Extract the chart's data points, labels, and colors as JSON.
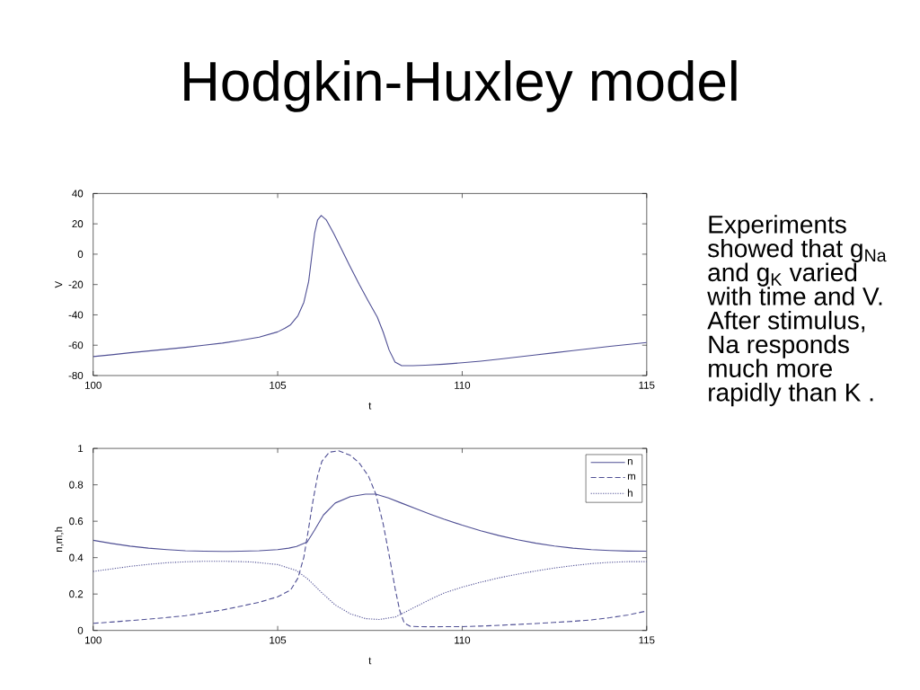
{
  "chart_data": [
    {
      "type": "line",
      "title": "Hodgkin-Huxley model",
      "xlabel": "t",
      "ylabel": "V",
      "color": "#4f4f94",
      "line_style": "solid",
      "xlim": [
        100,
        115
      ],
      "ylim": [
        -80,
        40
      ],
      "xticks": [
        100,
        105,
        110,
        115
      ],
      "yticks": [
        -80,
        -60,
        -40,
        -20,
        0,
        20,
        40
      ],
      "x": [
        100,
        100.5,
        101,
        101.5,
        102,
        102.5,
        103,
        103.5,
        104,
        104.5,
        105,
        105.2,
        105.35,
        105.55,
        105.71,
        105.84,
        105.92,
        106,
        106.08,
        106.18,
        106.32,
        106.52,
        106.72,
        106.96,
        107.21,
        107.45,
        107.7,
        107.86,
        108.02,
        108.18,
        108.35,
        108.67,
        109,
        109.5,
        110,
        110.5,
        111,
        111.5,
        112,
        112.5,
        113,
        113.5,
        114,
        114.5,
        115
      ],
      "values": [
        -67.5,
        -66.3,
        -65,
        -63.8,
        -62.6,
        -61.4,
        -60,
        -58.6,
        -56.8,
        -54.7,
        -51.2,
        -48.8,
        -46.5,
        -40.5,
        -31.7,
        -17.9,
        -2.1,
        13.6,
        22.5,
        25.5,
        22.5,
        13.6,
        3.8,
        -8,
        -19.9,
        -30.7,
        -41.5,
        -51.4,
        -63.2,
        -71.1,
        -73.4,
        -73.5,
        -73.2,
        -72.5,
        -71.6,
        -70.5,
        -69.2,
        -67.8,
        -66.4,
        -65,
        -63.6,
        -62.2,
        -60.8,
        -59.5,
        -58.2
      ]
    },
    {
      "type": "line",
      "xlabel": "t",
      "ylabel": "n,m,h",
      "xlim": [
        100,
        115
      ],
      "ylim": [
        0,
        1
      ],
      "xticks": [
        100,
        105,
        110,
        115
      ],
      "yticks": [
        0,
        0.2,
        0.4,
        0.6,
        0.8,
        1
      ],
      "legend": "top right",
      "series": [
        {
          "name": "n",
          "color": "#4f4f94",
          "line_style": "solid",
          "x": [
            100,
            100.5,
            101,
            101.5,
            102,
            102.5,
            103,
            103.5,
            104,
            104.5,
            105,
            105.3,
            105.51,
            105.8,
            106,
            106.24,
            106.56,
            106.97,
            107.38,
            107.66,
            108,
            108.35,
            108.75,
            109.16,
            109.5,
            110,
            110.5,
            111,
            111.5,
            112,
            112.5,
            113,
            113.5,
            114,
            114.5,
            115
          ],
          "values": [
            0.495,
            0.478,
            0.463,
            0.452,
            0.444,
            0.438,
            0.435,
            0.434,
            0.435,
            0.438,
            0.444,
            0.452,
            0.461,
            0.486,
            0.551,
            0.634,
            0.7,
            0.735,
            0.749,
            0.749,
            0.728,
            0.7,
            0.668,
            0.637,
            0.612,
            0.578,
            0.548,
            0.521,
            0.498,
            0.479,
            0.464,
            0.452,
            0.444,
            0.439,
            0.436,
            0.435
          ]
        },
        {
          "name": "m",
          "color": "#4f4f94",
          "line_style": "dashed",
          "x": [
            100,
            100.5,
            101,
            101.5,
            102,
            102.5,
            103,
            103.5,
            104,
            104.5,
            105,
            105.35,
            105.55,
            105.71,
            105.83,
            105.96,
            106.08,
            106.2,
            106.4,
            106.65,
            106.97,
            107.21,
            107.46,
            107.66,
            107.86,
            108.03,
            108.19,
            108.31,
            108.43,
            108.6,
            109,
            110,
            110.5,
            111,
            111.5,
            112,
            112.5,
            113,
            113.5,
            114,
            114.5,
            115
          ],
          "values": [
            0.039,
            0.046,
            0.054,
            0.062,
            0.071,
            0.081,
            0.097,
            0.112,
            0.133,
            0.155,
            0.185,
            0.222,
            0.288,
            0.403,
            0.551,
            0.716,
            0.848,
            0.93,
            0.979,
            0.987,
            0.962,
            0.92,
            0.848,
            0.749,
            0.584,
            0.403,
            0.222,
            0.107,
            0.041,
            0.022,
            0.02,
            0.021,
            0.024,
            0.028,
            0.033,
            0.038,
            0.044,
            0.05,
            0.058,
            0.07,
            0.085,
            0.107
          ]
        },
        {
          "name": "h",
          "color": "#4f4f94",
          "line_style": "dotted",
          "x": [
            100,
            100.5,
            101,
            101.5,
            102,
            102.5,
            103,
            103.5,
            104,
            104.3,
            104.7,
            105,
            105.51,
            105.83,
            106.16,
            106.56,
            106.97,
            107.38,
            107.75,
            108.19,
            108.67,
            109.16,
            109.5,
            110,
            110.5,
            111,
            111.5,
            112,
            112.5,
            113,
            113.5,
            114,
            114.5,
            115
          ],
          "values": [
            0.324,
            0.338,
            0.352,
            0.363,
            0.372,
            0.377,
            0.38,
            0.38,
            0.378,
            0.376,
            0.368,
            0.362,
            0.329,
            0.28,
            0.214,
            0.14,
            0.091,
            0.065,
            0.06,
            0.074,
            0.123,
            0.173,
            0.205,
            0.238,
            0.265,
            0.289,
            0.309,
            0.327,
            0.343,
            0.356,
            0.367,
            0.374,
            0.378,
            0.378
          ]
        }
      ]
    },
    {
      "type": "other",
      "annotations": [
        "Experiments showed that g$_{Na}$ and g$_{K}$ varied with time and V. After stimulus, Na responds much more rapidly than K ."
      ]
    }
  ]
}
